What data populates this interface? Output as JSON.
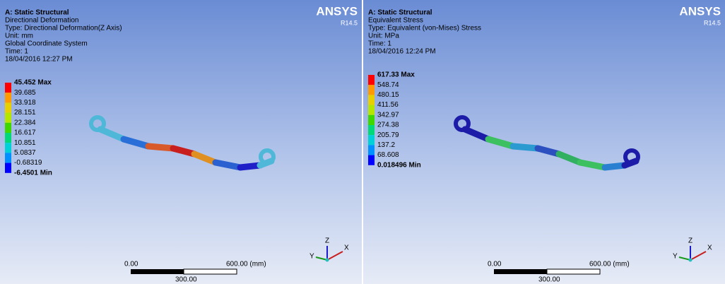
{
  "panels": [
    {
      "logo": "ANSYS",
      "version": "R14.5",
      "header": [
        "A: Static Structural",
        "Directional Deformation",
        "Type: Directional Deformation(Z Axis)",
        "Unit: mm",
        "Global Coordinate System",
        "Time: 1",
        "18/04/2016 12:27 PM"
      ],
      "legend": [
        "45.452 Max",
        "39.685",
        "33.918",
        "28.151",
        "22.384",
        "16.617",
        "10.851",
        "5.0837",
        "-0.68319",
        "-6.4501 Min"
      ],
      "scale": {
        "start": "0.00",
        "end": "600.00 (mm)",
        "mid": "300.00"
      },
      "triad": {
        "z": "Z",
        "y": "Y",
        "x": "X"
      }
    },
    {
      "logo": "ANSYS",
      "version": "R14.5",
      "header": [
        "A: Static Structural",
        "Equivalent Stress",
        "Type: Equivalent (von-Mises) Stress",
        "Unit: MPa",
        "Time: 1",
        "18/04/2016 12:24 PM"
      ],
      "legend": [
        "617.33 Max",
        "548.74",
        "480.15",
        "411.56",
        "342.97",
        "274.38",
        "205.79",
        "137.2",
        "68.608",
        "0.018496 Min"
      ],
      "scale": {
        "start": "0.00",
        "end": "600.00 (mm)",
        "mid": "300.00"
      },
      "triad": {
        "z": "Z",
        "y": "Y",
        "x": "X"
      }
    }
  ]
}
